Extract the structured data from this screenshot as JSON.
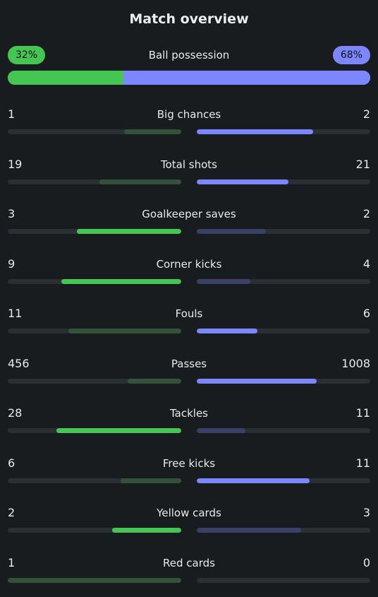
{
  "title": "Match overview",
  "colors": {
    "home_strong": "#45c552",
    "home_weak": "#33513b",
    "away_strong": "#7b86ff",
    "away_weak": "#3b4166",
    "track": "#2a2f34"
  },
  "possession": {
    "label": "Ball possession",
    "home": "32%",
    "away": "68%",
    "home_pct": 32,
    "away_pct": 68
  },
  "stats": [
    {
      "label": "Big chances",
      "home": "1",
      "away": "2",
      "home_fill": 0.33,
      "away_fill": 0.67,
      "leader": "away"
    },
    {
      "label": "Total shots",
      "home": "19",
      "away": "21",
      "home_fill": 0.47,
      "away_fill": 0.53,
      "leader": "away"
    },
    {
      "label": "Goalkeeper saves",
      "home": "3",
      "away": "2",
      "home_fill": 0.6,
      "away_fill": 0.4,
      "leader": "home"
    },
    {
      "label": "Corner kicks",
      "home": "9",
      "away": "4",
      "home_fill": 0.69,
      "away_fill": 0.31,
      "leader": "home"
    },
    {
      "label": "Fouls",
      "home": "11",
      "away": "6",
      "home_fill": 0.65,
      "away_fill": 0.35,
      "leader": "away"
    },
    {
      "label": "Passes",
      "home": "456",
      "away": "1008",
      "home_fill": 0.31,
      "away_fill": 0.69,
      "leader": "away"
    },
    {
      "label": "Tackles",
      "home": "28",
      "away": "11",
      "home_fill": 0.72,
      "away_fill": 0.28,
      "leader": "home"
    },
    {
      "label": "Free kicks",
      "home": "6",
      "away": "11",
      "home_fill": 0.35,
      "away_fill": 0.65,
      "leader": "away"
    },
    {
      "label": "Yellow cards",
      "home": "2",
      "away": "3",
      "home_fill": 0.4,
      "away_fill": 0.6,
      "leader": "home"
    },
    {
      "label": "Red cards",
      "home": "1",
      "away": "0",
      "home_fill": 1.0,
      "away_fill": 0.0,
      "leader": "none"
    }
  ]
}
